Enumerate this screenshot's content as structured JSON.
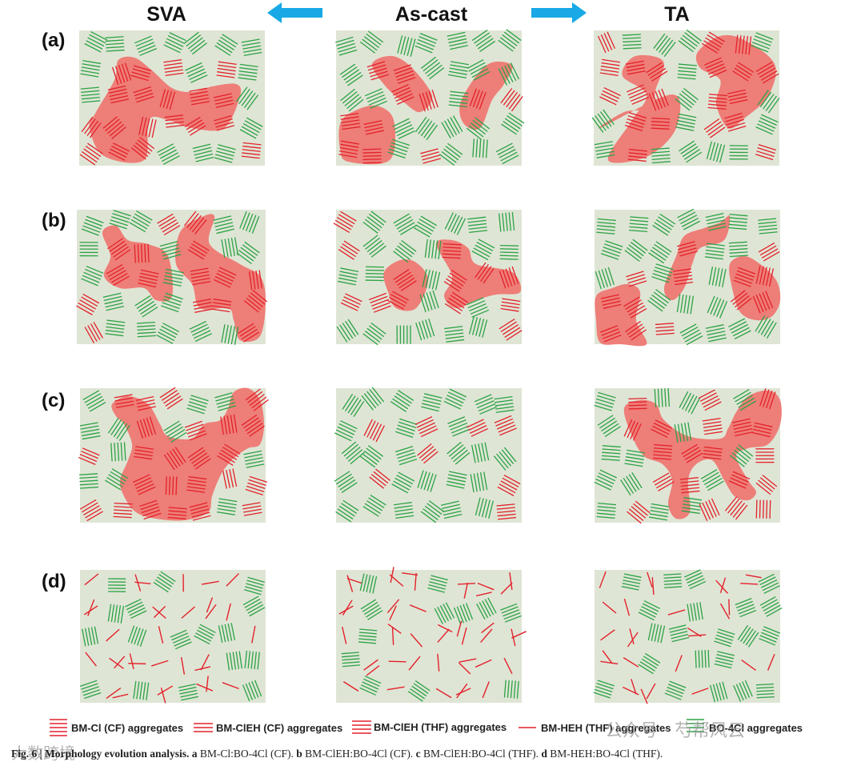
{
  "columns": [
    "SVA",
    "As-cast",
    "TA"
  ],
  "rows": [
    "(a)",
    "(b)",
    "(c)",
    "(d)"
  ],
  "legend": [
    {
      "label": "BM-Cl (CF) aggregates",
      "kind": "red-stack"
    },
    {
      "label": "BM-ClEH (CF) aggregates",
      "kind": "red-stack"
    },
    {
      "label": "BM-ClEH (THF) aggregates",
      "kind": "red-stack"
    },
    {
      "label": "BM-HEH (THF) aggregates",
      "kind": "red-single"
    },
    {
      "label": "BO-4Cl aggregates",
      "kind": "green-stack"
    }
  ],
  "caption": {
    "fig": "Fig. 6 | Morphology evolution analysis.",
    "a_key": "a",
    "a_text": "BM-Cl:BO-4Cl (CF).",
    "b_key": "b",
    "b_text": "BM-ClEH:BO-4Cl (CF).",
    "c_key": "c",
    "c_text": "BM-ClEH:BO-4Cl (THF).",
    "d_key": "d",
    "d_text": "BM-HEH:BO-4Cl (THF)."
  },
  "watermarks": {
    "top": "公众号 · 芍帮风云",
    "bottom": "大数跨境"
  },
  "colors": {
    "panel_bg": "#dfe5d5",
    "blob": "#ee7e78",
    "red_line": "#e3212b",
    "green_line": "#2aa245",
    "arrow": "#18a9e6",
    "text": "#111111"
  }
}
